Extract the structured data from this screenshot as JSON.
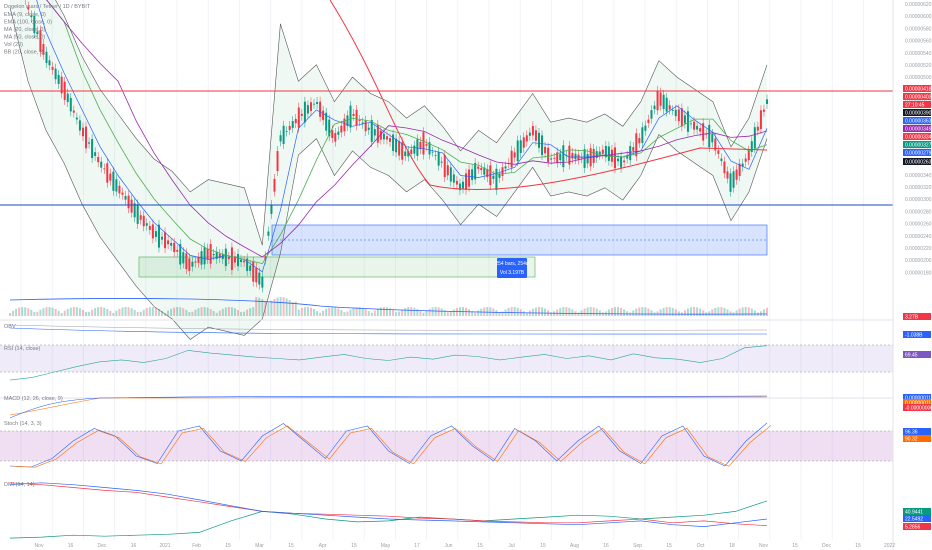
{
  "chart_data": {
    "type": "candlestick",
    "symbol_title": "Dogelon mars / Tether / 1D / BYBIT",
    "legend": [
      "EMA (9, close, 0)",
      "EMA (100, close, 0)",
      "MA (20, close, 0)",
      "MA (50, close, 0)",
      "Vol (20)",
      "BB (20, close, 2)"
    ],
    "x_ticks": [
      "Nov",
      "16",
      "Dec",
      "16",
      "2021",
      "Feb",
      "15",
      "Mar",
      "15",
      "Apr",
      "15",
      "May",
      "17",
      "Jun",
      "15",
      "Jul",
      "15",
      "Aug",
      "16",
      "Sep",
      "15",
      "Oct",
      "18",
      "Nov",
      "15",
      "Dec",
      "15",
      "2022"
    ],
    "price_axis": {
      "ticks": [
        "0.00000620",
        "0.00000600",
        "0.00000580",
        "0.00000560",
        "0.00000540",
        "0.00000520",
        "0.00000500",
        "0.00000480",
        "0.00000460",
        "0.00000440",
        "0.00000420",
        "0.00000400",
        "0.00000380",
        "0.00000360",
        "0.00000340",
        "0.00000320",
        "0.00000300",
        "0.00000280",
        "0.00000260",
        "0.00000240",
        "0.00000220",
        "0.00000200",
        "0.00000180"
      ],
      "badges": [
        {
          "text": "0.00000418",
          "color": "#f23645"
        },
        {
          "text": "0.00000403",
          "color": "#f23645"
        },
        {
          "text": "27:10:45",
          "color": "#f23645"
        },
        {
          "text": "0.00000390",
          "color": "#131722"
        },
        {
          "text": "0.00000363",
          "color": "#2962ff"
        },
        {
          "text": "0.00000349",
          "color": "#9c27b0"
        },
        {
          "text": "0.00000334",
          "color": "#f23645"
        },
        {
          "text": "0.00000327",
          "color": "#089981"
        },
        {
          "text": "0.00000279",
          "color": "#2962ff"
        },
        {
          "text": "0.00000263",
          "color": "#131722"
        }
      ],
      "resistance": 4.18e-06,
      "support": 2.79e-06
    },
    "measure_box": {
      "line1": "254 bars, 254d",
      "line2": "Vol 3.197B"
    },
    "candles": {
      "description": "Daily candles from Nov 2020 to early Nov 2021; steep decline to Feb, spike late Feb, range 0.0000028-0.0000042 through Nov",
      "close_path": [
        6.1,
        5.2,
        4.6,
        4.2,
        3.7,
        3.3,
        3.0,
        2.7,
        2.45,
        2.3,
        2.05,
        2.2,
        2.15,
        2.1,
        1.85,
        3.6,
        3.85,
        4.05,
        3.6,
        3.9,
        3.7,
        3.6,
        3.4,
        3.55,
        3.3,
        3.0,
        3.25,
        3.1,
        3.4,
        3.7,
        3.35,
        3.4,
        3.35,
        3.45,
        3.3,
        3.6,
        4.1,
        3.9,
        3.75,
        3.6,
        3.05,
        3.4,
        4.05
      ]
    },
    "volume_badge": "3.27B",
    "indicators": [
      {
        "name": "OBV",
        "badges": [
          {
            "text": "-1.038B",
            "color": "#2962ff"
          }
        ]
      },
      {
        "name": "RSI (14, close)",
        "levels": [
          70,
          50,
          30
        ],
        "badges": [
          {
            "text": "69.45",
            "color": "#7e57c2"
          }
        ],
        "values": [
          18,
          22,
          30,
          38,
          45,
          48,
          44,
          50,
          62,
          58,
          55,
          52,
          50,
          48,
          52,
          56,
          50,
          47,
          52,
          49,
          55,
          53,
          48,
          52,
          56,
          50,
          54,
          48,
          57,
          51,
          49,
          44,
          50,
          66,
          69
        ]
      },
      {
        "name": "MACD (12, 26, close, 9)",
        "badges": [
          {
            "text": "0.00000011",
            "color": "#2962ff"
          },
          {
            "text": "0.00000011",
            "color": "#ff6d00"
          },
          {
            "text": "-0.00000000",
            "color": "#f23645"
          }
        ]
      },
      {
        "name": "Stoch (14, 3, 3)",
        "levels": [
          80,
          20
        ],
        "badges": [
          {
            "text": "96.36",
            "color": "#2962ff"
          },
          {
            "text": "90.32",
            "color": "#ff6d00"
          }
        ],
        "values": [
          10,
          8,
          25,
          60,
          85,
          70,
          30,
          15,
          80,
          90,
          40,
          20,
          70,
          95,
          60,
          25,
          80,
          90,
          40,
          15,
          70,
          90,
          50,
          20,
          85,
          60,
          20,
          60,
          90,
          40,
          15,
          70,
          90,
          30,
          10,
          60,
          96
        ]
      },
      {
        "name": "DMI (14, 14)",
        "badges": [
          {
            "text": "40.9441",
            "color": "#089981"
          },
          {
            "text": "22.5492",
            "color": "#2962ff"
          },
          {
            "text": "5.2856",
            "color": "#f23645"
          }
        ],
        "plus_di": [
          2,
          3,
          5,
          4,
          5,
          6,
          8,
          20,
          30,
          27,
          22,
          19,
          20,
          24,
          22,
          20,
          22,
          24,
          26,
          25,
          22,
          24,
          26,
          30,
          41
        ],
        "minus_di": [
          60,
          58,
          55,
          52,
          50,
          45,
          40,
          35,
          30,
          28,
          27,
          26,
          25,
          23,
          22,
          20,
          19,
          18,
          18,
          20,
          22,
          18,
          20,
          17,
          15
        ],
        "adx": [
          58,
          60,
          58,
          55,
          52,
          48,
          42,
          36,
          30,
          28,
          26,
          24,
          22,
          21,
          20,
          19,
          18,
          17,
          16,
          18,
          20,
          16,
          14,
          18,
          22
        ]
      }
    ]
  }
}
